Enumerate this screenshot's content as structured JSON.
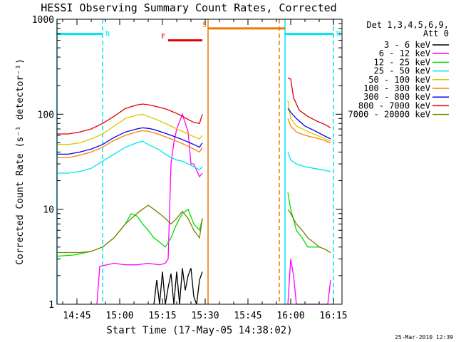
{
  "chart_data": {
    "type": "line",
    "title": "HESSI Observing Summary Count Rates, Corrected",
    "xlabel": "Start Time (17-May-05 14:38:02)",
    "ylabel": "Corrected Count Rate (s⁻¹ detector⁻¹)",
    "y_scale": "log",
    "ylim": [
      1,
      1000
    ],
    "xlim": [
      "14:38",
      "16:18"
    ],
    "x_ticks": [
      "14:45",
      "15:00",
      "15:15",
      "15:30",
      "15:45",
      "16:00",
      "16:15"
    ],
    "y_ticks": [
      "1",
      "10",
      "100",
      "1000"
    ],
    "legend_position": "right",
    "legend_header": [
      "Det 1,3,4,5,6,9,",
      "Att 0"
    ],
    "timestamp": "25-Mar-2010 12:39",
    "flag_bars": [
      {
        "label": "N",
        "start": "14:38",
        "end": "14:54",
        "level": 700,
        "color": "#00e5ee"
      },
      {
        "label": "N",
        "start": "15:58",
        "end": "16:15",
        "level": 700,
        "color": "#00e5ee"
      },
      {
        "label": "F",
        "start": "15:17",
        "end": "15:29",
        "level": 600,
        "color": "#e00000"
      },
      {
        "label": "S",
        "start": "15:31",
        "end": "15:58",
        "level": 800,
        "color": "#f07800"
      }
    ],
    "vlines": [
      {
        "t": "14:54",
        "color": "#00e5ee",
        "style": "dashed"
      },
      {
        "t": "16:15",
        "color": "#00e5ee",
        "style": "dashed"
      },
      {
        "t": "15:31",
        "color": "#f07800",
        "style": "solid"
      },
      {
        "t": "15:56",
        "color": "#f07800",
        "style": "dashed"
      },
      {
        "t": "15:58",
        "color": "#00e5ee",
        "style": "solid"
      },
      {
        "t": "14:38",
        "color": "#00e5ee",
        "style": "solid"
      }
    ],
    "gap": [
      "15:31",
      "15:58"
    ],
    "series": [
      {
        "name": "3 - 6 keV",
        "color": "#000000",
        "points": [
          [
            "15:12",
            1
          ],
          [
            "15:13",
            1.8
          ],
          [
            "15:14",
            1
          ],
          [
            "15:15",
            2.2
          ],
          [
            "15:16",
            1
          ],
          [
            "15:17",
            1.5
          ],
          [
            "15:18",
            2.1
          ],
          [
            "15:19",
            1
          ],
          [
            "15:20",
            2.2
          ],
          [
            "15:21",
            1
          ],
          [
            "15:22",
            2.4
          ],
          [
            "15:23",
            1.4
          ],
          [
            "15:24",
            2
          ],
          [
            "15:25",
            2.4
          ],
          [
            "15:26",
            1.2
          ],
          [
            "15:27",
            1
          ],
          [
            "15:28",
            1.8
          ],
          [
            "15:29",
            2.2
          ]
        ]
      },
      {
        "name": "6 - 12 keV",
        "color": "#ff00ff",
        "points": [
          [
            "14:52",
            1
          ],
          [
            "14:53",
            2.5
          ],
          [
            "14:58",
            2.7
          ],
          [
            "15:02",
            2.6
          ],
          [
            "15:06",
            2.6
          ],
          [
            "15:10",
            2.7
          ],
          [
            "15:14",
            2.6
          ],
          [
            "15:16",
            2.7
          ],
          [
            "15:17",
            3
          ],
          [
            "15:18",
            30
          ],
          [
            "15:19",
            50
          ],
          [
            "15:20",
            70
          ],
          [
            "15:22",
            100
          ],
          [
            "15:24",
            65
          ],
          [
            "15:25",
            30
          ],
          [
            "15:26",
            30
          ],
          [
            "15:28",
            22
          ],
          [
            "15:29",
            24
          ],
          [
            "15:59",
            1
          ],
          [
            "16:00",
            3
          ],
          [
            "16:01",
            2
          ],
          [
            "16:02",
            1
          ],
          [
            "16:13",
            1
          ],
          [
            "16:14",
            1.8
          ]
        ]
      },
      {
        "name": "12 - 25 keV",
        "color": "#00dd00",
        "points": [
          [
            "14:38",
            3.2
          ],
          [
            "14:44",
            3.3
          ],
          [
            "14:50",
            3.6
          ],
          [
            "14:54",
            4
          ],
          [
            "14:58",
            5
          ],
          [
            "15:02",
            7
          ],
          [
            "15:04",
            9
          ],
          [
            "15:06",
            8.5
          ],
          [
            "15:08",
            7
          ],
          [
            "15:10",
            6
          ],
          [
            "15:12",
            5
          ],
          [
            "15:14",
            4.5
          ],
          [
            "15:16",
            4
          ],
          [
            "15:18",
            5
          ],
          [
            "15:20",
            7
          ],
          [
            "15:22",
            9
          ],
          [
            "15:24",
            10
          ],
          [
            "15:26",
            7
          ],
          [
            "15:28",
            6
          ],
          [
            "15:29",
            8
          ],
          [
            "15:59",
            15
          ],
          [
            "16:00",
            10
          ],
          [
            "16:02",
            6
          ],
          [
            "16:04",
            5
          ],
          [
            "16:06",
            4
          ],
          [
            "16:08",
            4
          ],
          [
            "16:10",
            4
          ],
          [
            "16:12",
            3.8
          ],
          [
            "16:14",
            3.5
          ]
        ]
      },
      {
        "name": "25 - 50 keV",
        "color": "#00e5ee",
        "points": [
          [
            "14:38",
            24
          ],
          [
            "14:42",
            24
          ],
          [
            "14:46",
            25
          ],
          [
            "14:50",
            27
          ],
          [
            "14:54",
            32
          ],
          [
            "14:58",
            38
          ],
          [
            "15:02",
            45
          ],
          [
            "15:06",
            50
          ],
          [
            "15:08",
            52
          ],
          [
            "15:10",
            48
          ],
          [
            "15:12",
            45
          ],
          [
            "15:14",
            42
          ],
          [
            "15:16",
            38
          ],
          [
            "15:18",
            35
          ],
          [
            "15:20",
            33
          ],
          [
            "15:22",
            32
          ],
          [
            "15:24",
            30
          ],
          [
            "15:26",
            28
          ],
          [
            "15:28",
            26
          ],
          [
            "15:29",
            28
          ],
          [
            "15:59",
            40
          ],
          [
            "16:00",
            33
          ],
          [
            "16:02",
            30
          ],
          [
            "16:05",
            28
          ],
          [
            "16:08",
            27
          ],
          [
            "16:11",
            26
          ],
          [
            "16:14",
            25
          ]
        ]
      },
      {
        "name": "50 - 100 keV",
        "color": "#d8c800",
        "points": [
          [
            "14:38",
            48
          ],
          [
            "14:42",
            48
          ],
          [
            "14:46",
            50
          ],
          [
            "14:50",
            55
          ],
          [
            "14:54",
            62
          ],
          [
            "14:58",
            75
          ],
          [
            "15:02",
            90
          ],
          [
            "15:06",
            98
          ],
          [
            "15:08",
            100
          ],
          [
            "15:10",
            95
          ],
          [
            "15:12",
            90
          ],
          [
            "15:14",
            85
          ],
          [
            "15:16",
            80
          ],
          [
            "15:18",
            75
          ],
          [
            "15:20",
            70
          ],
          [
            "15:22",
            66
          ],
          [
            "15:24",
            62
          ],
          [
            "15:26",
            58
          ],
          [
            "15:28",
            55
          ],
          [
            "15:29",
            60
          ],
          [
            "15:59",
            140
          ],
          [
            "16:00",
            90
          ],
          [
            "16:02",
            75
          ],
          [
            "16:05",
            68
          ],
          [
            "16:08",
            62
          ],
          [
            "16:11",
            57
          ],
          [
            "16:14",
            52
          ]
        ]
      },
      {
        "name": "100 - 300 keV",
        "color": "#ff7f00",
        "points": [
          [
            "14:38",
            35
          ],
          [
            "14:42",
            35
          ],
          [
            "14:46",
            37
          ],
          [
            "14:50",
            40
          ],
          [
            "14:54",
            45
          ],
          [
            "14:58",
            53
          ],
          [
            "15:02",
            60
          ],
          [
            "15:06",
            65
          ],
          [
            "15:08",
            67
          ],
          [
            "15:10",
            66
          ],
          [
            "15:12",
            64
          ],
          [
            "15:14",
            61
          ],
          [
            "15:16",
            58
          ],
          [
            "15:18",
            55
          ],
          [
            "15:20",
            52
          ],
          [
            "15:22",
            49
          ],
          [
            "15:24",
            46
          ],
          [
            "15:26",
            43
          ],
          [
            "15:28",
            40
          ],
          [
            "15:29",
            45
          ],
          [
            "15:59",
            90
          ],
          [
            "16:00",
            75
          ],
          [
            "16:02",
            65
          ],
          [
            "16:05",
            60
          ],
          [
            "16:08",
            57
          ],
          [
            "16:11",
            54
          ],
          [
            "16:14",
            50
          ]
        ]
      },
      {
        "name": "300 - 800 keV",
        "color": "#0000ee",
        "points": [
          [
            "14:38",
            38
          ],
          [
            "14:42",
            38
          ],
          [
            "14:46",
            40
          ],
          [
            "14:50",
            43
          ],
          [
            "14:54",
            48
          ],
          [
            "14:58",
            57
          ],
          [
            "15:02",
            65
          ],
          [
            "15:06",
            70
          ],
          [
            "15:08",
            72
          ],
          [
            "15:10",
            71
          ],
          [
            "15:12",
            69
          ],
          [
            "15:14",
            66
          ],
          [
            "15:16",
            63
          ],
          [
            "15:18",
            60
          ],
          [
            "15:20",
            57
          ],
          [
            "15:22",
            54
          ],
          [
            "15:24",
            51
          ],
          [
            "15:26",
            48
          ],
          [
            "15:28",
            45
          ],
          [
            "15:29",
            50
          ],
          [
            "15:59",
            115
          ],
          [
            "16:00",
            105
          ],
          [
            "16:02",
            90
          ],
          [
            "16:05",
            75
          ],
          [
            "16:08",
            68
          ],
          [
            "16:11",
            61
          ],
          [
            "16:14",
            55
          ]
        ]
      },
      {
        "name": "800 - 7000 keV",
        "color": "#e00000",
        "points": [
          [
            "14:38",
            62
          ],
          [
            "14:42",
            62
          ],
          [
            "14:46",
            65
          ],
          [
            "14:50",
            70
          ],
          [
            "14:54",
            80
          ],
          [
            "14:58",
            95
          ],
          [
            "15:02",
            115
          ],
          [
            "15:06",
            125
          ],
          [
            "15:08",
            128
          ],
          [
            "15:10",
            126
          ],
          [
            "15:12",
            122
          ],
          [
            "15:14",
            118
          ],
          [
            "15:16",
            114
          ],
          [
            "15:18",
            108
          ],
          [
            "15:20",
            102
          ],
          [
            "15:22",
            95
          ],
          [
            "15:24",
            88
          ],
          [
            "15:26",
            82
          ],
          [
            "15:28",
            80
          ],
          [
            "15:29",
            100
          ],
          [
            "15:59",
            240
          ],
          [
            "16:00",
            235
          ],
          [
            "16:01",
            150
          ],
          [
            "16:03",
            110
          ],
          [
            "16:06",
            95
          ],
          [
            "16:09",
            85
          ],
          [
            "16:12",
            78
          ],
          [
            "16:14",
            72
          ]
        ]
      },
      {
        "name": "7000 - 20000 keV",
        "color": "#7f7f00",
        "points": [
          [
            "14:38",
            3.5
          ],
          [
            "14:42",
            3.5
          ],
          [
            "14:46",
            3.5
          ],
          [
            "14:50",
            3.6
          ],
          [
            "14:54",
            4
          ],
          [
            "14:58",
            5
          ],
          [
            "15:02",
            7
          ],
          [
            "15:06",
            9
          ],
          [
            "15:08",
            10
          ],
          [
            "15:10",
            11
          ],
          [
            "15:12",
            10
          ],
          [
            "15:14",
            9
          ],
          [
            "15:16",
            8
          ],
          [
            "15:18",
            7
          ],
          [
            "15:20",
            8
          ],
          [
            "15:22",
            9.5
          ],
          [
            "15:24",
            8
          ],
          [
            "15:26",
            6
          ],
          [
            "15:28",
            5
          ],
          [
            "15:29",
            8
          ],
          [
            "15:59",
            10
          ],
          [
            "16:00",
            9
          ],
          [
            "16:02",
            7
          ],
          [
            "16:04",
            6
          ],
          [
            "16:06",
            5
          ],
          [
            "16:08",
            4.5
          ],
          [
            "16:10",
            4
          ],
          [
            "16:12",
            3.8
          ],
          [
            "16:14",
            3.5
          ]
        ]
      }
    ]
  }
}
